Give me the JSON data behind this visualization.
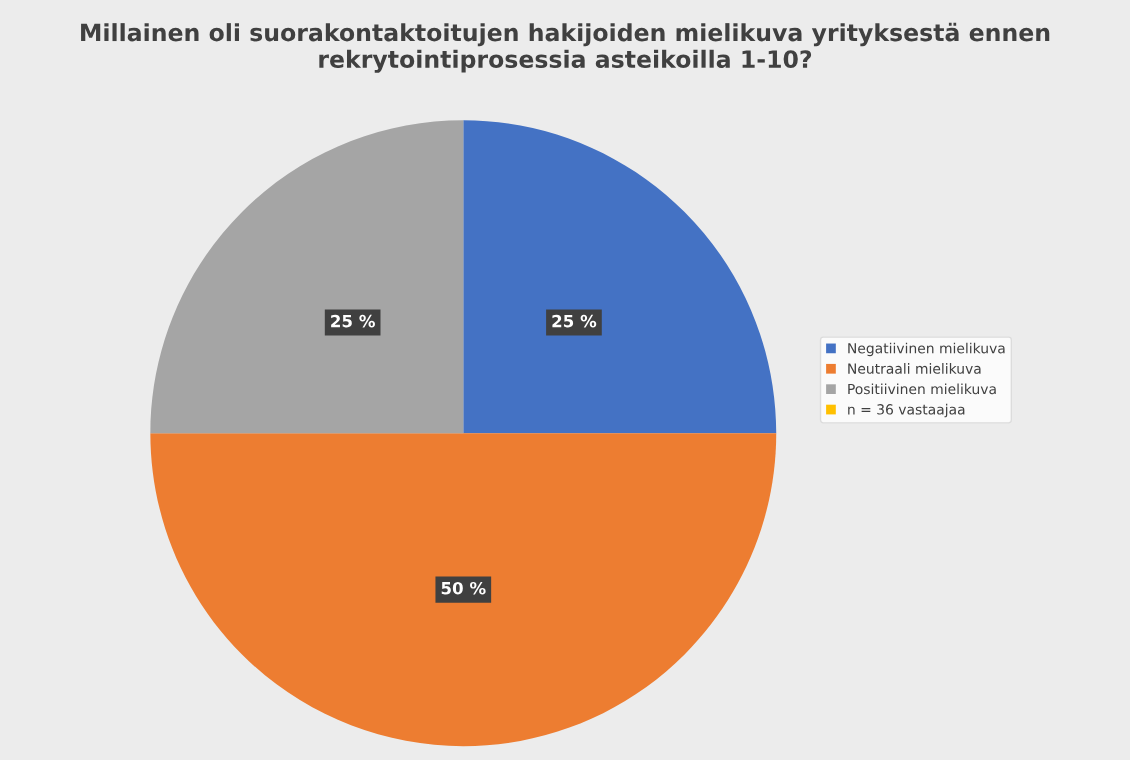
{
  "chart_data": {
    "type": "pie",
    "title": "Millainen oli suorakontaktoitujen hakijoiden mielikuva yrityksestä ennen rekrytointiprosessia asteikoilla 1-10?",
    "categories": [
      "Negatiivinen mielikuva",
      "Neutraali mielikuva",
      "Positiivinen mielikuva",
      "n = 36 vastaajaa"
    ],
    "values": [
      25,
      50,
      25,
      0
    ],
    "colors": [
      "#4472c4",
      "#ed7d31",
      "#a5a5a5",
      "#ffc000"
    ],
    "value_labels": [
      "25 %",
      "50 %",
      "25 %",
      null
    ],
    "legend": "right"
  }
}
